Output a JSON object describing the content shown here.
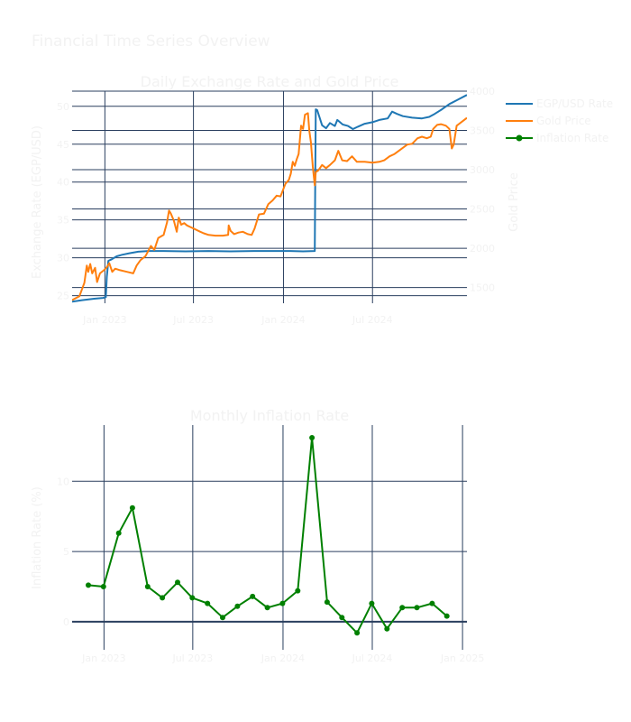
{
  "page": {
    "title": "Financial Time Series Overview",
    "text_color": "#f2f2f2",
    "background": "#ffffff",
    "grid_color": "#2a3f5f"
  },
  "chart_data": [
    {
      "type": "line",
      "title": "Daily Exchange Rate and Gold Price",
      "ylabel": "Exchange Rate (EGP/USD)",
      "y2label": "Gold Price",
      "x_range": [
        "2022-10-26",
        "2025-01-10"
      ],
      "ylim": [
        24.0,
        52.0
      ],
      "y2lim": [
        1300,
        4000
      ],
      "x_ticks": [
        {
          "date": "2023-01-01",
          "label": "Jan 2023"
        },
        {
          "date": "2023-07-01",
          "label": "Jul 2023"
        },
        {
          "date": "2024-01-01",
          "label": "Jan 2024"
        },
        {
          "date": "2024-07-01",
          "label": "Jul 2024"
        }
      ],
      "y_ticks": [
        {
          "value": 25,
          "label": "25"
        },
        {
          "value": 30,
          "label": "30"
        },
        {
          "value": 35,
          "label": "35"
        },
        {
          "value": 40,
          "label": "40"
        },
        {
          "value": 45,
          "label": "45"
        },
        {
          "value": 50,
          "label": "50"
        }
      ],
      "y2_ticks": [
        {
          "value": 1500,
          "label": "1500"
        },
        {
          "value": 2000,
          "label": "2000"
        },
        {
          "value": 2500,
          "label": "2500"
        },
        {
          "value": 3000,
          "label": "3000"
        },
        {
          "value": 3500,
          "label": "3500"
        },
        {
          "value": 4000,
          "label": "4000"
        }
      ],
      "grid": true,
      "legend_placement": "right",
      "series": [
        {
          "name": "EGP/USD Rate",
          "axis": "y",
          "color": "#1f77b4",
          "points": [
            [
              "2022-10-26",
              24.2
            ],
            [
              "2022-11-15",
              24.4
            ],
            [
              "2022-12-10",
              24.6
            ],
            [
              "2022-12-28",
              24.7
            ],
            [
              "2023-01-03",
              24.8
            ],
            [
              "2023-01-05",
              27.5
            ],
            [
              "2023-01-08",
              29.6
            ],
            [
              "2023-01-15",
              29.8
            ],
            [
              "2023-01-25",
              30.2
            ],
            [
              "2023-02-05",
              30.4
            ],
            [
              "2023-02-20",
              30.6
            ],
            [
              "2023-03-10",
              30.8
            ],
            [
              "2023-03-31",
              30.9
            ],
            [
              "2023-05-01",
              30.9
            ],
            [
              "2023-06-15",
              30.85
            ],
            [
              "2023-08-01",
              30.9
            ],
            [
              "2023-09-15",
              30.85
            ],
            [
              "2023-11-01",
              30.9
            ],
            [
              "2023-12-15",
              30.9
            ],
            [
              "2024-01-15",
              30.9
            ],
            [
              "2024-02-10",
              30.85
            ],
            [
              "2024-03-05",
              30.9
            ],
            [
              "2024-03-06",
              40.0
            ],
            [
              "2024-03-07",
              49.6
            ],
            [
              "2024-03-10",
              49.5
            ],
            [
              "2024-03-20",
              47.5
            ],
            [
              "2024-03-28",
              47.1
            ],
            [
              "2024-04-05",
              47.8
            ],
            [
              "2024-04-15",
              47.4
            ],
            [
              "2024-04-20",
              48.2
            ],
            [
              "2024-05-01",
              47.6
            ],
            [
              "2024-05-12",
              47.4
            ],
            [
              "2024-05-22",
              47.0
            ],
            [
              "2024-06-01",
              47.3
            ],
            [
              "2024-06-15",
              47.7
            ],
            [
              "2024-07-01",
              47.9
            ],
            [
              "2024-07-15",
              48.2
            ],
            [
              "2024-08-01",
              48.4
            ],
            [
              "2024-08-10",
              49.3
            ],
            [
              "2024-08-20",
              49.0
            ],
            [
              "2024-09-01",
              48.7
            ],
            [
              "2024-09-20",
              48.5
            ],
            [
              "2024-10-10",
              48.4
            ],
            [
              "2024-10-25",
              48.6
            ],
            [
              "2024-11-05",
              49.0
            ],
            [
              "2024-11-20",
              49.6
            ],
            [
              "2024-12-05",
              50.3
            ],
            [
              "2024-12-20",
              50.8
            ],
            [
              "2025-01-10",
              51.5
            ]
          ]
        },
        {
          "name": "Gold Price",
          "axis": "y2",
          "color": "#ff7f0e",
          "points": [
            [
              "2022-10-26",
              1340
            ],
            [
              "2022-11-10",
              1390
            ],
            [
              "2022-11-20",
              1560
            ],
            [
              "2022-11-25",
              1780
            ],
            [
              "2022-11-28",
              1700
            ],
            [
              "2022-12-02",
              1800
            ],
            [
              "2022-12-06",
              1680
            ],
            [
              "2022-12-12",
              1750
            ],
            [
              "2022-12-16",
              1570
            ],
            [
              "2022-12-22",
              1680
            ],
            [
              "2022-12-30",
              1720
            ],
            [
              "2023-01-05",
              1760
            ],
            [
              "2023-01-10",
              1810
            ],
            [
              "2023-01-16",
              1700
            ],
            [
              "2023-01-22",
              1740
            ],
            [
              "2023-02-01",
              1720
            ],
            [
              "2023-02-15",
              1700
            ],
            [
              "2023-02-28",
              1680
            ],
            [
              "2023-03-07",
              1780
            ],
            [
              "2023-03-15",
              1850
            ],
            [
              "2023-03-25",
              1900
            ],
            [
              "2023-04-05",
              2030
            ],
            [
              "2023-04-12",
              1980
            ],
            [
              "2023-04-20",
              2130
            ],
            [
              "2023-05-01",
              2170
            ],
            [
              "2023-05-08",
              2330
            ],
            [
              "2023-05-12",
              2480
            ],
            [
              "2023-05-16",
              2440
            ],
            [
              "2023-05-22",
              2350
            ],
            [
              "2023-05-28",
              2210
            ],
            [
              "2023-06-01",
              2390
            ],
            [
              "2023-06-06",
              2300
            ],
            [
              "2023-06-12",
              2320
            ],
            [
              "2023-06-18",
              2290
            ],
            [
              "2023-06-25",
              2270
            ],
            [
              "2023-07-05",
              2240
            ],
            [
              "2023-07-15",
              2210
            ],
            [
              "2023-07-22",
              2190
            ],
            [
              "2023-08-01",
              2170
            ],
            [
              "2023-08-15",
              2160
            ],
            [
              "2023-08-30",
              2160
            ],
            [
              "2023-09-10",
              2170
            ],
            [
              "2023-09-11",
              2290
            ],
            [
              "2023-09-15",
              2220
            ],
            [
              "2023-09-22",
              2180
            ],
            [
              "2023-10-01",
              2200
            ],
            [
              "2023-10-10",
              2210
            ],
            [
              "2023-10-20",
              2180
            ],
            [
              "2023-10-28",
              2170
            ],
            [
              "2023-11-03",
              2250
            ],
            [
              "2023-11-12",
              2430
            ],
            [
              "2023-11-22",
              2440
            ],
            [
              "2023-12-01",
              2560
            ],
            [
              "2023-12-10",
              2610
            ],
            [
              "2023-12-18",
              2670
            ],
            [
              "2023-12-26",
              2660
            ],
            [
              "2024-01-05",
              2820
            ],
            [
              "2024-01-12",
              2870
            ],
            [
              "2024-01-16",
              2950
            ],
            [
              "2024-01-20",
              3100
            ],
            [
              "2024-01-24",
              3050
            ],
            [
              "2024-01-28",
              3130
            ],
            [
              "2024-02-01",
              3200
            ],
            [
              "2024-02-06",
              3560
            ],
            [
              "2024-02-10",
              3520
            ],
            [
              "2024-02-14",
              3700
            ],
            [
              "2024-02-20",
              3720
            ],
            [
              "2024-02-23",
              3490
            ],
            [
              "2024-02-26",
              3350
            ],
            [
              "2024-03-01",
              3040
            ],
            [
              "2024-03-05",
              2800
            ],
            [
              "2024-03-07",
              2970
            ],
            [
              "2024-03-12",
              2990
            ],
            [
              "2024-03-20",
              3060
            ],
            [
              "2024-03-28",
              3020
            ],
            [
              "2024-04-05",
              3060
            ],
            [
              "2024-04-15",
              3120
            ],
            [
              "2024-04-22",
              3240
            ],
            [
              "2024-04-30",
              3120
            ],
            [
              "2024-05-10",
              3110
            ],
            [
              "2024-05-20",
              3170
            ],
            [
              "2024-05-30",
              3100
            ],
            [
              "2024-06-15",
              3100
            ],
            [
              "2024-07-01",
              3090
            ],
            [
              "2024-07-15",
              3100
            ],
            [
              "2024-07-25",
              3120
            ],
            [
              "2024-08-05",
              3170
            ],
            [
              "2024-08-15",
              3200
            ],
            [
              "2024-08-28",
              3260
            ],
            [
              "2024-09-10",
              3320
            ],
            [
              "2024-09-20",
              3330
            ],
            [
              "2024-10-01",
              3400
            ],
            [
              "2024-10-10",
              3420
            ],
            [
              "2024-10-20",
              3400
            ],
            [
              "2024-10-28",
              3420
            ],
            [
              "2024-11-02",
              3520
            ],
            [
              "2024-11-10",
              3570
            ],
            [
              "2024-11-18",
              3580
            ],
            [
              "2024-11-28",
              3560
            ],
            [
              "2024-12-05",
              3520
            ],
            [
              "2024-12-10",
              3270
            ],
            [
              "2024-12-14",
              3320
            ],
            [
              "2024-12-20",
              3560
            ],
            [
              "2025-01-10",
              3660
            ]
          ]
        }
      ]
    },
    {
      "type": "line",
      "title": "Monthly Inflation Rate",
      "ylabel": "Inflation Rate (%)",
      "x_range": [
        "2022-10-28",
        "2025-01-10"
      ],
      "ylim": [
        -2.0,
        14.0
      ],
      "x_ticks": [
        {
          "date": "2023-01-01",
          "label": "Jan 2023"
        },
        {
          "date": "2023-07-01",
          "label": "Jul 2023"
        },
        {
          "date": "2024-01-01",
          "label": "Jan 2024"
        },
        {
          "date": "2024-07-01",
          "label": "Jul 2024"
        },
        {
          "date": "2025-01-01",
          "label": "Jan 2025"
        }
      ],
      "y_ticks": [
        {
          "value": 0,
          "label": "0"
        },
        {
          "value": 5,
          "label": "5"
        },
        {
          "value": 10,
          "label": "10"
        }
      ],
      "grid": true,
      "series": [
        {
          "name": "Inflation Rate",
          "axis": "y",
          "color": "#008000",
          "markers": true,
          "points": [
            [
              "2022-11-30",
              2.6
            ],
            [
              "2022-12-31",
              2.5
            ],
            [
              "2023-01-31",
              6.3
            ],
            [
              "2023-02-28",
              8.1
            ],
            [
              "2023-03-31",
              2.5
            ],
            [
              "2023-04-30",
              1.7
            ],
            [
              "2023-05-31",
              2.8
            ],
            [
              "2023-06-30",
              1.7
            ],
            [
              "2023-07-31",
              1.3
            ],
            [
              "2023-08-31",
              0.3
            ],
            [
              "2023-09-30",
              1.1
            ],
            [
              "2023-10-31",
              1.8
            ],
            [
              "2023-11-30",
              1.0
            ],
            [
              "2023-12-31",
              1.3
            ],
            [
              "2024-01-31",
              2.2
            ],
            [
              "2024-02-29",
              13.1
            ],
            [
              "2024-03-31",
              1.4
            ],
            [
              "2024-04-30",
              0.3
            ],
            [
              "2024-05-31",
              -0.8
            ],
            [
              "2024-06-30",
              1.3
            ],
            [
              "2024-07-31",
              -0.5
            ],
            [
              "2024-08-31",
              1.0
            ],
            [
              "2024-09-30",
              1.0
            ],
            [
              "2024-10-31",
              1.3
            ],
            [
              "2024-11-30",
              0.4
            ]
          ]
        }
      ]
    }
  ]
}
